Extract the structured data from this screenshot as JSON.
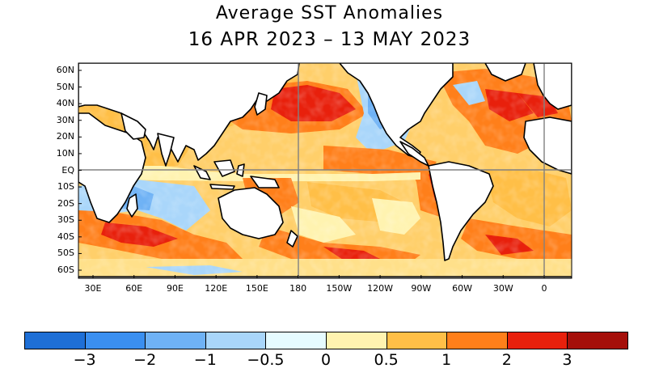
{
  "title": "Average SST Anomalies",
  "subtitle": "16 APR 2023 – 13 MAY 2023",
  "lat_labels": [
    "60N",
    "50N",
    "40N",
    "30N",
    "20N",
    "10N",
    "EQ",
    "10S",
    "20S",
    "30S",
    "40S",
    "50S",
    "60S"
  ],
  "lon_labels": [
    "30E",
    "60E",
    "90E",
    "120E",
    "150E",
    "180",
    "150W",
    "120W",
    "90W",
    "60W",
    "30W",
    "0"
  ],
  "colorbar": {
    "labels": [
      "−3",
      "−2",
      "−1",
      "−0.5",
      "0",
      "0.5",
      "1",
      "2",
      "3"
    ],
    "colors": [
      "#1e6fd6",
      "#3a8ff0",
      "#6fb2f5",
      "#a9d6fa",
      "#e6fbff",
      "#fff3b0",
      "#ffbf47",
      "#ff7f1a",
      "#e8200c",
      "#a50f0a"
    ]
  },
  "colors": {
    "land": "#ffffff",
    "coast": "#000000",
    "grid": "#808080"
  }
}
